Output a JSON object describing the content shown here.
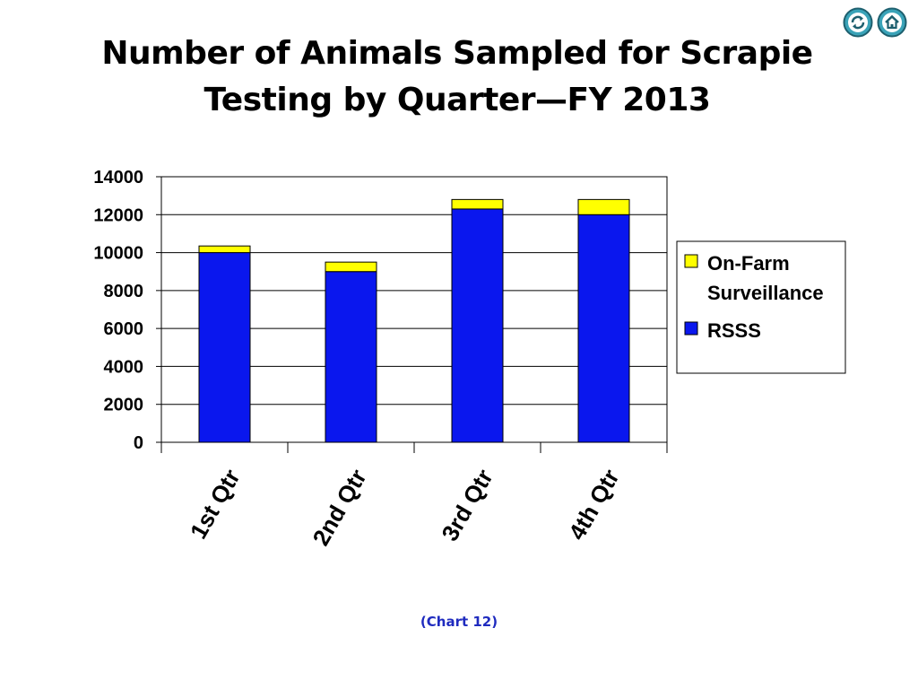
{
  "slide": {
    "title_line1": "Number of Animals Sampled for Scrapie",
    "title_line2": "Testing by Quarter—FY 2013",
    "caption": "(Chart 12)"
  },
  "nav": {
    "refresh_icon": "refresh-icon",
    "home_icon": "home-icon",
    "button_color": "#3aa3b8"
  },
  "chart_data": {
    "type": "bar",
    "stacked": true,
    "categories": [
      "1st Qtr",
      "2nd Qtr",
      "3rd Qtr",
      "4th Qtr"
    ],
    "series": [
      {
        "name": "RSSS",
        "values": [
          10000,
          9000,
          12300,
          12000
        ],
        "color": "#0a17ee"
      },
      {
        "name": "On-Farm Surveillance",
        "values": [
          350,
          500,
          500,
          800
        ],
        "color": "#ffff00"
      }
    ],
    "legend_labels": [
      "On-Farm",
      "Surveillance",
      "RSSS"
    ],
    "ylim": [
      0,
      14000
    ],
    "yticks": [
      "0",
      "2000",
      "4000",
      "6000",
      "8000",
      "10000",
      "12000",
      "14000"
    ],
    "grid": true,
    "legend_position": "right",
    "xlabel": "",
    "ylabel": ""
  }
}
